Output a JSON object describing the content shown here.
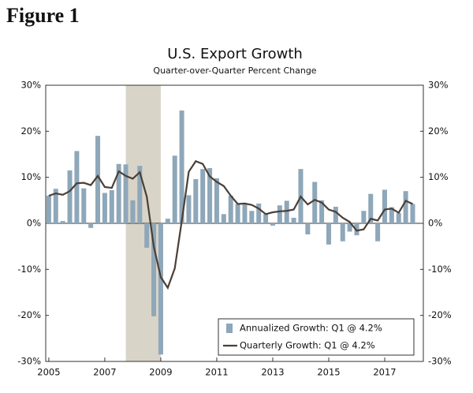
{
  "heading": "Figure 1",
  "chart_data": {
    "type": "bar-line",
    "title": "U.S. Export Growth",
    "subtitle": "Quarter-over-Quarter Percent Change",
    "x": [
      2005,
      2005.25,
      2005.5,
      2005.75,
      2006,
      2006.25,
      2006.5,
      2006.75,
      2007,
      2007.25,
      2007.5,
      2007.75,
      2008,
      2008.25,
      2008.5,
      2008.75,
      2009,
      2009.25,
      2009.5,
      2009.75,
      2010,
      2010.25,
      2010.5,
      2010.75,
      2011,
      2011.25,
      2011.5,
      2011.75,
      2012,
      2012.25,
      2012.5,
      2012.75,
      2013,
      2013.25,
      2013.5,
      2013.75,
      2014,
      2014.25,
      2014.5,
      2014.75,
      2015,
      2015.25,
      2015.5,
      2015.75,
      2016,
      2016.25,
      2016.5,
      2016.75,
      2017,
      2017.25,
      2017.5,
      2017.75,
      2018
    ],
    "series": [
      {
        "name": "Annualized Growth: Q1 @ 4.2%",
        "kind": "bar",
        "color": "#8ea7b9",
        "values": [
          6.0,
          7.5,
          0.5,
          11.5,
          15.7,
          7.6,
          -1.0,
          19.0,
          6.6,
          7.2,
          12.9,
          12.8,
          5.0,
          12.5,
          -5.3,
          -20.2,
          -28.5,
          1.0,
          14.7,
          24.5,
          6.1,
          9.6,
          11.8,
          12.0,
          9.8,
          2.0,
          6.0,
          4.2,
          4.3,
          2.7,
          4.3,
          2.0,
          -0.5,
          3.9,
          4.9,
          1.2,
          11.8,
          -2.4,
          9.0,
          5.0,
          -4.6,
          3.6,
          -3.9,
          -1.8,
          -2.6,
          2.7,
          6.4,
          -3.9,
          7.3,
          3.5,
          2.2,
          7.0,
          4.2
        ]
      },
      {
        "name": "Quarterly Growth: Q1 @ 4.2%",
        "kind": "line",
        "color": "#4a3f37",
        "values": [
          6.0,
          6.5,
          6.2,
          7.0,
          8.7,
          8.8,
          8.3,
          10.3,
          7.9,
          7.7,
          11.3,
          10.3,
          9.7,
          11.1,
          5.8,
          -5.0,
          -11.7,
          -14.0,
          -9.8,
          0.5,
          11.2,
          13.5,
          12.9,
          10.2,
          9.0,
          8.1,
          6.0,
          4.2,
          4.3,
          4.0,
          3.2,
          2.0,
          2.4,
          2.6,
          2.7,
          3.0,
          5.8,
          4.1,
          5.1,
          4.5,
          3.0,
          2.5,
          1.2,
          0.3,
          -1.6,
          -1.3,
          1.0,
          0.6,
          3.0,
          3.2,
          2.3,
          4.9,
          4.2
        ]
      }
    ],
    "shade": [
      2007.75,
      2009.0
    ],
    "shade_color": "#d9d4c8",
    "xlim": [
      2004.89,
      2018.38
    ],
    "xticks": [
      2005,
      2007,
      2009,
      2011,
      2013,
      2015,
      2017
    ],
    "ylim": [
      -30,
      30
    ],
    "yticks": [
      {
        "value": -30,
        "label": "-30%"
      },
      {
        "value": -20,
        "label": "-20%"
      },
      {
        "value": -10,
        "label": "-10%"
      },
      {
        "value": 0,
        "label": "0%"
      },
      {
        "value": 10,
        "label": "10%"
      },
      {
        "value": 20,
        "label": "20%"
      },
      {
        "value": 30,
        "label": "30%"
      }
    ],
    "y2lim": [
      -30,
      30
    ],
    "y2ticks": [
      {
        "value": -30,
        "label": "-30%"
      },
      {
        "value": -20,
        "label": "-20%"
      },
      {
        "value": -10,
        "label": "-10%"
      },
      {
        "value": 0,
        "label": "0%"
      },
      {
        "value": 10,
        "label": "10%"
      },
      {
        "value": 20,
        "label": "20%"
      },
      {
        "value": 30,
        "label": "30%"
      }
    ],
    "legend": "lower right"
  }
}
